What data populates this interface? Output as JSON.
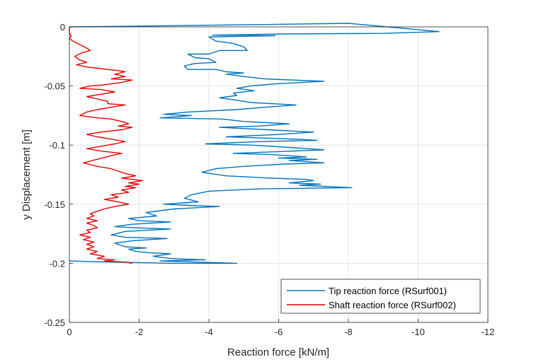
{
  "chart_data": {
    "type": "line",
    "title": "",
    "xlabel": "Reaction force [kN/m]",
    "ylabel": "y Displacement [m]",
    "xlim": [
      0,
      -12
    ],
    "ylim": [
      -0.25,
      0
    ],
    "x_reversed": true,
    "x_ticks": [
      0,
      -2,
      -4,
      -6,
      -8,
      -10,
      -12
    ],
    "x_tick_labels": [
      "0",
      "-2",
      "-4",
      "-6",
      "-8",
      "-10",
      "-12"
    ],
    "y_ticks": [
      0,
      -0.05,
      -0.1,
      -0.15,
      -0.2,
      -0.25
    ],
    "y_tick_labels": [
      "0",
      "-0.05",
      "-0.1",
      "-0.15",
      "-0.2",
      "-0.25"
    ],
    "grid": true,
    "legend_position": "bottom-right",
    "series": [
      {
        "name": "Tip reaction force (RSurf001)",
        "color": "#0072BD",
        "points": [
          [
            0,
            0
          ],
          [
            -1.5,
            0.0005
          ],
          [
            -3,
            0.001
          ],
          [
            -5.5,
            0.002
          ],
          [
            -8,
            0.003
          ],
          [
            -10.6,
            -0.004
          ],
          [
            -9,
            -0.0055
          ],
          [
            -6.2,
            -0.006
          ],
          [
            -4.1,
            -0.007
          ],
          [
            -5.9,
            -0.0075
          ],
          [
            -4.0,
            -0.0085
          ],
          [
            -4.2,
            -0.012
          ],
          [
            -4.7,
            -0.014
          ],
          [
            -5.0,
            -0.017
          ],
          [
            -5.1,
            -0.02
          ],
          [
            -4.3,
            -0.02
          ],
          [
            -4.0,
            -0.023
          ],
          [
            -3.4,
            -0.023
          ],
          [
            -3.6,
            -0.026
          ],
          [
            -4.0,
            -0.027
          ],
          [
            -4.2,
            -0.03
          ],
          [
            -3.6,
            -0.031
          ],
          [
            -3.3,
            -0.033
          ],
          [
            -3.4,
            -0.036
          ],
          [
            -4.2,
            -0.036
          ],
          [
            -4.5,
            -0.038
          ],
          [
            -5.0,
            -0.039
          ],
          [
            -4.5,
            -0.04
          ],
          [
            -5.0,
            -0.042
          ],
          [
            -5.6,
            -0.044
          ],
          [
            -7.3,
            -0.046
          ],
          [
            -6.0,
            -0.048
          ],
          [
            -5.2,
            -0.05
          ],
          [
            -4.8,
            -0.052
          ],
          [
            -5.3,
            -0.054
          ],
          [
            -4.7,
            -0.056
          ],
          [
            -4.8,
            -0.058
          ],
          [
            -4.3,
            -0.06
          ],
          [
            -4.8,
            -0.062
          ],
          [
            -5.2,
            -0.064
          ],
          [
            -6.5,
            -0.066
          ],
          [
            -5.6,
            -0.068
          ],
          [
            -4.8,
            -0.07
          ],
          [
            -3.4,
            -0.072
          ],
          [
            -2.7,
            -0.074
          ],
          [
            -3.5,
            -0.075
          ],
          [
            -2.6,
            -0.077
          ],
          [
            -4.4,
            -0.078
          ],
          [
            -5.0,
            -0.08
          ],
          [
            -6.3,
            -0.082
          ],
          [
            -5.4,
            -0.084
          ],
          [
            -4.3,
            -0.085
          ],
          [
            -5.7,
            -0.087
          ],
          [
            -6.3,
            -0.088
          ],
          [
            -7.0,
            -0.089
          ],
          [
            -6.0,
            -0.091
          ],
          [
            -4.5,
            -0.093
          ],
          [
            -6.5,
            -0.095
          ],
          [
            -7.1,
            -0.096
          ],
          [
            -5.5,
            -0.097
          ],
          [
            -3.9,
            -0.099
          ],
          [
            -5.2,
            -0.1
          ],
          [
            -6.3,
            -0.102
          ],
          [
            -7.3,
            -0.104
          ],
          [
            -5.6,
            -0.106
          ],
          [
            -4.7,
            -0.107
          ],
          [
            -5.8,
            -0.108
          ],
          [
            -6.8,
            -0.11
          ],
          [
            -6.0,
            -0.111
          ],
          [
            -7.1,
            -0.112
          ],
          [
            -6.3,
            -0.113
          ],
          [
            -7.3,
            -0.115
          ],
          [
            -6.2,
            -0.116
          ],
          [
            -5.0,
            -0.118
          ],
          [
            -4.2,
            -0.12
          ],
          [
            -3.8,
            -0.123
          ],
          [
            -4.5,
            -0.126
          ],
          [
            -5.8,
            -0.128
          ],
          [
            -6.8,
            -0.129
          ],
          [
            -7.0,
            -0.13
          ],
          [
            -6.3,
            -0.132
          ],
          [
            -7.2,
            -0.133
          ],
          [
            -6.6,
            -0.134
          ],
          [
            -8.1,
            -0.136
          ],
          [
            -5.5,
            -0.137
          ],
          [
            -4.0,
            -0.139
          ],
          [
            -3.5,
            -0.142
          ],
          [
            -3.3,
            -0.145
          ],
          [
            -3.7,
            -0.148
          ],
          [
            -2.7,
            -0.15
          ],
          [
            -3.4,
            -0.151
          ],
          [
            -4.3,
            -0.152
          ],
          [
            -3.0,
            -0.154
          ],
          [
            -2.2,
            -0.157
          ],
          [
            -2.5,
            -0.16
          ],
          [
            -1.7,
            -0.162
          ],
          [
            -2.0,
            -0.164
          ],
          [
            -2.9,
            -0.165
          ],
          [
            -1.8,
            -0.167
          ],
          [
            -1.3,
            -0.169
          ],
          [
            -1.9,
            -0.17
          ],
          [
            -2.9,
            -0.171
          ],
          [
            -1.6,
            -0.173
          ],
          [
            -1.2,
            -0.176
          ],
          [
            -1.6,
            -0.178
          ],
          [
            -2.8,
            -0.179
          ],
          [
            -1.8,
            -0.181
          ],
          [
            -1.3,
            -0.183
          ],
          [
            -1.6,
            -0.186
          ],
          [
            -2.2,
            -0.187
          ],
          [
            -1.7,
            -0.188
          ],
          [
            -1.9,
            -0.19
          ],
          [
            -2.3,
            -0.191
          ],
          [
            -2.9,
            -0.192
          ],
          [
            -2.4,
            -0.194
          ],
          [
            -2.9,
            -0.196
          ],
          [
            -3.9,
            -0.197
          ],
          [
            -2.6,
            -0.198
          ],
          [
            -4.8,
            -0.2
          ],
          [
            -3.0,
            -0.2
          ],
          [
            -1.2,
            -0.199
          ],
          [
            0,
            -0.198
          ]
        ]
      },
      {
        "name": "Shaft reaction force (RSurf002)",
        "color": "#E60000",
        "points": [
          [
            0,
            0
          ],
          [
            0,
            -0.005
          ],
          [
            -0.05,
            -0.008
          ],
          [
            0,
            -0.01
          ],
          [
            -0.1,
            -0.012
          ],
          [
            -0.3,
            -0.015
          ],
          [
            -0.5,
            -0.018
          ],
          [
            -0.6,
            -0.02
          ],
          [
            -0.35,
            -0.022
          ],
          [
            -0.15,
            -0.025
          ],
          [
            -0.3,
            -0.028
          ],
          [
            -0.5,
            -0.03
          ],
          [
            -0.2,
            -0.032
          ],
          [
            -0.5,
            -0.034
          ],
          [
            -0.8,
            -0.035
          ],
          [
            -1.1,
            -0.036
          ],
          [
            -1.4,
            -0.037
          ],
          [
            -1.6,
            -0.038
          ],
          [
            -1.3,
            -0.04
          ],
          [
            -1.6,
            -0.042
          ],
          [
            -1.2,
            -0.044
          ],
          [
            -1.8,
            -0.045
          ],
          [
            -1.5,
            -0.047
          ],
          [
            -1.0,
            -0.049
          ],
          [
            -0.6,
            -0.05
          ],
          [
            -0.3,
            -0.052
          ],
          [
            -0.9,
            -0.053
          ],
          [
            -1.3,
            -0.055
          ],
          [
            -0.9,
            -0.057
          ],
          [
            -0.5,
            -0.059
          ],
          [
            -0.8,
            -0.061
          ],
          [
            -1.1,
            -0.063
          ],
          [
            -1.1,
            -0.065
          ],
          [
            -1.6,
            -0.066
          ],
          [
            -1.2,
            -0.068
          ],
          [
            -0.8,
            -0.07
          ],
          [
            -0.5,
            -0.072
          ],
          [
            -0.3,
            -0.075
          ],
          [
            -0.8,
            -0.077
          ],
          [
            -1.2,
            -0.078
          ],
          [
            -1.5,
            -0.08
          ],
          [
            -1.7,
            -0.082
          ],
          [
            -1.4,
            -0.084
          ],
          [
            -1.8,
            -0.085
          ],
          [
            -1.5,
            -0.087
          ],
          [
            -0.9,
            -0.089
          ],
          [
            -0.5,
            -0.091
          ],
          [
            -0.8,
            -0.093
          ],
          [
            -1.2,
            -0.095
          ],
          [
            -1.6,
            -0.097
          ],
          [
            -1.3,
            -0.099
          ],
          [
            -0.9,
            -0.101
          ],
          [
            -0.5,
            -0.103
          ],
          [
            -0.9,
            -0.105
          ],
          [
            -1.5,
            -0.107
          ],
          [
            -1.2,
            -0.109
          ],
          [
            -0.8,
            -0.112
          ],
          [
            -0.4,
            -0.115
          ],
          [
            -0.8,
            -0.118
          ],
          [
            -1.2,
            -0.12
          ],
          [
            -1.4,
            -0.122
          ],
          [
            -1.6,
            -0.124
          ],
          [
            -1.9,
            -0.126
          ],
          [
            -1.5,
            -0.128
          ],
          [
            -1.8,
            -0.129
          ],
          [
            -2.1,
            -0.13
          ],
          [
            -1.7,
            -0.132
          ],
          [
            -2.0,
            -0.133
          ],
          [
            -1.6,
            -0.135
          ],
          [
            -1.9,
            -0.136
          ],
          [
            -1.5,
            -0.138
          ],
          [
            -1.7,
            -0.14
          ],
          [
            -1.2,
            -0.142
          ],
          [
            -1.4,
            -0.144
          ],
          [
            -1.0,
            -0.146
          ],
          [
            -1.4,
            -0.148
          ],
          [
            -1.7,
            -0.15
          ],
          [
            -1.3,
            -0.152
          ],
          [
            -1.0,
            -0.154
          ],
          [
            -0.8,
            -0.156
          ],
          [
            -0.6,
            -0.158
          ],
          [
            -0.7,
            -0.16
          ],
          [
            -0.5,
            -0.162
          ],
          [
            -0.8,
            -0.164
          ],
          [
            -0.5,
            -0.166
          ],
          [
            -0.7,
            -0.168
          ],
          [
            -0.8,
            -0.17
          ],
          [
            -0.5,
            -0.172
          ],
          [
            -0.6,
            -0.174
          ],
          [
            -0.3,
            -0.176
          ],
          [
            -0.6,
            -0.178
          ],
          [
            -0.4,
            -0.18
          ],
          [
            -0.7,
            -0.182
          ],
          [
            -0.5,
            -0.184
          ],
          [
            -0.7,
            -0.186
          ],
          [
            -0.5,
            -0.188
          ],
          [
            -0.8,
            -0.19
          ],
          [
            -0.6,
            -0.192
          ],
          [
            -1.0,
            -0.194
          ],
          [
            -0.8,
            -0.196
          ],
          [
            -1.3,
            -0.197
          ],
          [
            -1.0,
            -0.198
          ],
          [
            -1.6,
            -0.199
          ],
          [
            -1.8,
            -0.2
          ]
        ]
      }
    ]
  }
}
